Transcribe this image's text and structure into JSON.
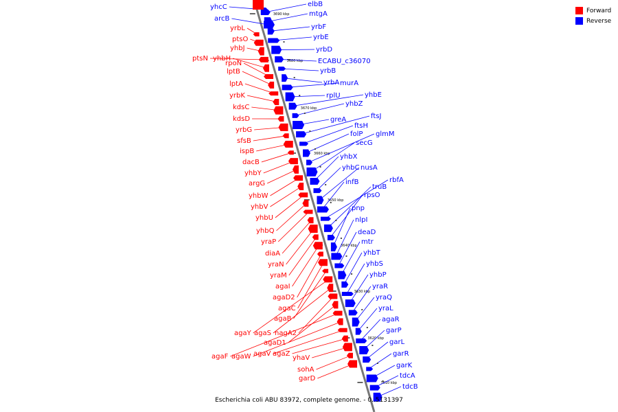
{
  "legend": {
    "forward_label": "Forward",
    "forward_color": "#ff0000",
    "reverse_label": "Reverse",
    "reverse_color": "#0000ff"
  },
  "caption": "Escherichia coli ABU 83972, complete genome. - 0..5131397",
  "ticks": [
    "3690 kbp",
    "3680 kbp",
    "3670 kbp",
    "3660 kbp",
    "3650 kbp",
    "3640 kbp",
    "3630 kbp",
    "3620 kbp",
    "3610 kbp"
  ],
  "reverse_genes": [
    "yhcC",
    "arcB",
    "elbB",
    "mtgA",
    "yrbF",
    "yrbE",
    "yrbD",
    "ECABU_c36070",
    "yrbB",
    "yrbA",
    "murA",
    "rplU",
    "yhbE",
    "yhbZ",
    "greA",
    "ftsJ",
    "ftsH",
    "folP",
    "glmM",
    "secG",
    "yhbX",
    "yhbC",
    "nusA",
    "infB",
    "rbfA",
    "truB",
    "rpsO",
    "pnp",
    "nlpI",
    "deaD",
    "mtr",
    "yhbT",
    "yhbS",
    "yhbP",
    "yraR",
    "yraQ",
    "yraL",
    "agaR",
    "garP",
    "garL",
    "garR",
    "garK",
    "tdcA",
    "tdcB"
  ],
  "forward_genes": [
    "yrbL",
    "ptsO",
    "yhbJ",
    "ptsN",
    "yhbH",
    "rpoN",
    "lptB",
    "lptA",
    "yrbK",
    "kdsC",
    "kdsD",
    "yrbG",
    "sfsB",
    "ispB",
    "dacB",
    "yhbY",
    "argG",
    "yhbW",
    "yhbV",
    "yhbU",
    "yhbQ",
    "yraP",
    "diaA",
    "yraN",
    "yraM",
    "agaI",
    "agaD2",
    "agaC",
    "agaB",
    "agaY",
    "agaS",
    "nagA2",
    "agaD1",
    "agaF",
    "agaW",
    "agaV",
    "agaZ",
    "yhaV",
    "sohA",
    "garD"
  ]
}
